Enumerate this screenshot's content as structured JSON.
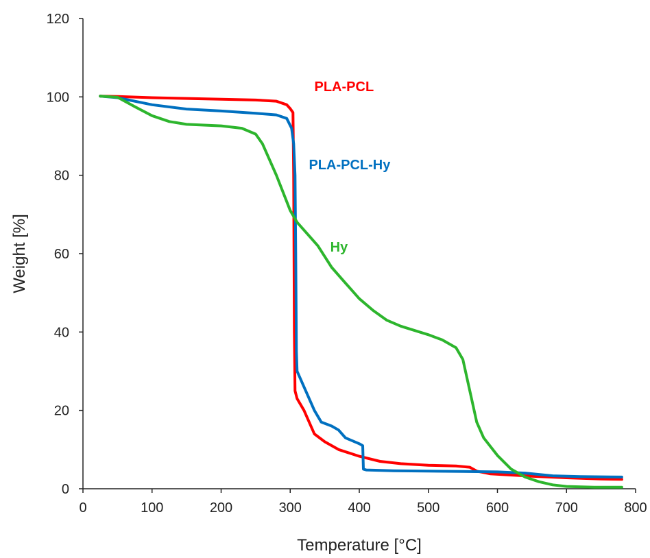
{
  "chart_data": {
    "type": "line",
    "title": "",
    "xlabel": "Temperature [°C]",
    "ylabel": "Weight [%]",
    "xlim": [
      0,
      800
    ],
    "ylim": [
      0,
      120
    ],
    "x_ticks": [
      0,
      100,
      200,
      300,
      400,
      500,
      600,
      700,
      800
    ],
    "y_ticks": [
      0,
      20,
      40,
      60,
      80,
      100,
      120
    ],
    "grid": false,
    "legend": "none",
    "series": [
      {
        "name": "PLA-PCL",
        "color": "#ff0000",
        "points": [
          [
            25,
            100.2
          ],
          [
            50,
            100.1
          ],
          [
            100,
            99.8
          ],
          [
            150,
            99.6
          ],
          [
            200,
            99.4
          ],
          [
            250,
            99.2
          ],
          [
            280,
            98.9
          ],
          [
            295,
            98.0
          ],
          [
            300,
            97.0
          ],
          [
            304,
            96.0
          ],
          [
            305,
            80
          ],
          [
            306,
            40
          ],
          [
            307,
            25
          ],
          [
            310,
            23
          ],
          [
            320,
            20
          ],
          [
            335,
            14
          ],
          [
            350,
            12
          ],
          [
            370,
            10
          ],
          [
            400,
            8.3
          ],
          [
            430,
            7
          ],
          [
            460,
            6.4
          ],
          [
            500,
            6.0
          ],
          [
            540,
            5.8
          ],
          [
            560,
            5.5
          ],
          [
            570,
            4.5
          ],
          [
            590,
            3.8
          ],
          [
            620,
            3.5
          ],
          [
            650,
            3.2
          ],
          [
            700,
            2.8
          ],
          [
            750,
            2.5
          ],
          [
            780,
            2.4
          ]
        ]
      },
      {
        "name": "PLA-PCL-Hy",
        "color": "#0070c0",
        "points": [
          [
            25,
            100.2
          ],
          [
            50,
            99.8
          ],
          [
            100,
            98.0
          ],
          [
            150,
            96.9
          ],
          [
            200,
            96.4
          ],
          [
            250,
            95.8
          ],
          [
            280,
            95.4
          ],
          [
            295,
            94.5
          ],
          [
            302,
            92
          ],
          [
            305,
            88
          ],
          [
            307,
            80
          ],
          [
            308,
            60
          ],
          [
            309,
            35
          ],
          [
            310,
            30
          ],
          [
            320,
            26
          ],
          [
            335,
            20
          ],
          [
            345,
            17
          ],
          [
            360,
            16
          ],
          [
            370,
            15
          ],
          [
            380,
            13
          ],
          [
            400,
            11.5
          ],
          [
            405,
            11
          ],
          [
            406,
            5
          ],
          [
            410,
            4.8
          ],
          [
            450,
            4.6
          ],
          [
            500,
            4.5
          ],
          [
            550,
            4.4
          ],
          [
            600,
            4.3
          ],
          [
            640,
            4.0
          ],
          [
            680,
            3.3
          ],
          [
            720,
            3.1
          ],
          [
            780,
            3.0
          ]
        ]
      },
      {
        "name": "Hy",
        "color": "#2db52d",
        "points": [
          [
            25,
            100.2
          ],
          [
            50,
            99.9
          ],
          [
            75,
            97.5
          ],
          [
            100,
            95.2
          ],
          [
            125,
            93.7
          ],
          [
            150,
            93.0
          ],
          [
            200,
            92.6
          ],
          [
            230,
            92.0
          ],
          [
            250,
            90.5
          ],
          [
            260,
            88
          ],
          [
            270,
            84
          ],
          [
            280,
            80
          ],
          [
            290,
            75.5
          ],
          [
            300,
            71
          ],
          [
            310,
            68
          ],
          [
            320,
            66
          ],
          [
            340,
            62
          ],
          [
            360,
            56.5
          ],
          [
            380,
            52.5
          ],
          [
            400,
            48.5
          ],
          [
            420,
            45.5
          ],
          [
            440,
            43
          ],
          [
            460,
            41.5
          ],
          [
            500,
            39.3
          ],
          [
            520,
            38
          ],
          [
            540,
            36
          ],
          [
            550,
            33
          ],
          [
            560,
            25
          ],
          [
            570,
            17
          ],
          [
            580,
            13
          ],
          [
            600,
            8.5
          ],
          [
            620,
            5
          ],
          [
            640,
            3
          ],
          [
            660,
            1.8
          ],
          [
            680,
            1
          ],
          [
            700,
            0.6
          ],
          [
            740,
            0.4
          ],
          [
            780,
            0.4
          ]
        ]
      }
    ],
    "annotations": [
      {
        "text": "PLA-PCL",
        "x": 335,
        "y": 101.5,
        "color": "#ff0000"
      },
      {
        "text": "PLA-PCL-Hy",
        "x": 327,
        "y": 81.5,
        "color": "#0070c0"
      },
      {
        "text": "Hy",
        "x": 358,
        "y": 60.5,
        "color": "#2db52d"
      }
    ]
  }
}
